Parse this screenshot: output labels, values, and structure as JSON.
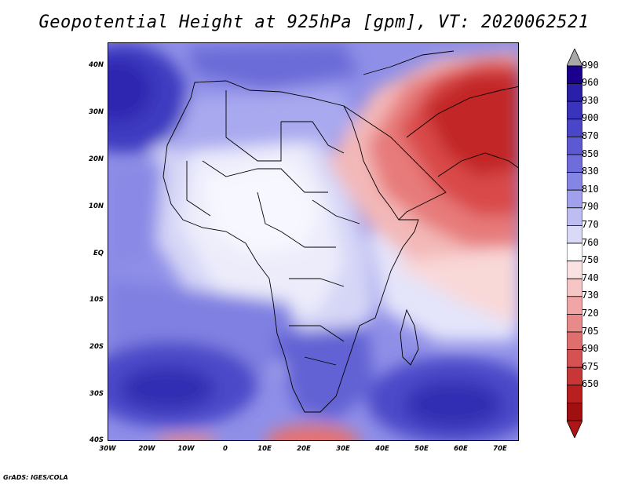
{
  "title": "Geopotential Height at 925hPa [gpm], VT: 2020062521",
  "credit": "GrADS: IGES/COLA",
  "map": {
    "lat_labels": [
      "40N",
      "30N",
      "20N",
      "10N",
      "EQ",
      "10S",
      "20S",
      "30S",
      "40S"
    ],
    "lon_labels": [
      "30W",
      "20W",
      "10W",
      "0",
      "10E",
      "20E",
      "30E",
      "40E",
      "50E",
      "60E",
      "70E"
    ],
    "lat_range": [
      -40,
      45
    ],
    "lon_range": [
      -30,
      75
    ],
    "features": [
      "Africa",
      "Arabian Peninsula",
      "Madagascar",
      "Iranian Plateau"
    ]
  },
  "colorbar": {
    "levels": [
      "990",
      "960",
      "930",
      "900",
      "870",
      "850",
      "830",
      "810",
      "790",
      "770",
      "760",
      "750",
      "740",
      "730",
      "720",
      "705",
      "690",
      "675",
      "650"
    ],
    "colors": [
      "#1a008c",
      "#2a1fa8",
      "#3a33bb",
      "#4a46c8",
      "#5c5ad2",
      "#6e6ddb",
      "#8585e4",
      "#a0a0ec",
      "#bdbdf3",
      "#dadaf8",
      "#ffffff",
      "#fbe2e2",
      "#f6c5c5",
      "#f0a6a6",
      "#e88a8a",
      "#df6e6e",
      "#d65252",
      "#c93636",
      "#b82020",
      "#a01010"
    ],
    "over_color": "#a8a8a8",
    "under_color": "#b01515"
  }
}
